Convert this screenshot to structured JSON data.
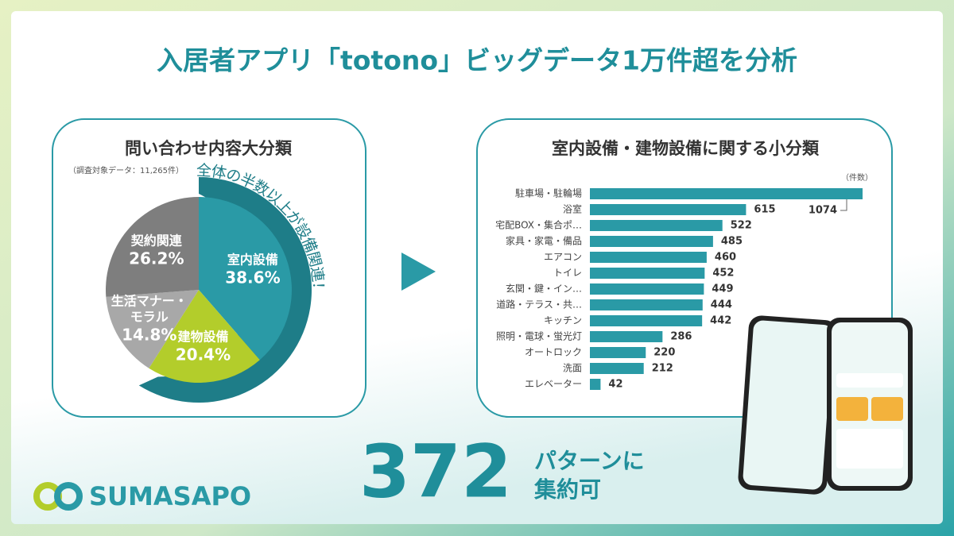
{
  "title": "入居者アプリ「totono」ビッグデータ1万件超を分析",
  "chart_data": [
    {
      "type": "pie",
      "title": "問い合わせ内容大分類",
      "note": "（調査対象データ：11,265件）",
      "annotation": "全体の半数以上が設備関連！",
      "categories": [
        "室内設備",
        "建物設備",
        "生活マナー・モラル",
        "契約関連"
      ],
      "values": [
        38.6,
        20.4,
        14.8,
        26.2
      ],
      "value_labels": [
        "38.6%",
        "20.4%",
        "14.8%",
        "26.2%"
      ],
      "colors": [
        "#2a9aa6",
        "#b3cd2b",
        "#a8a8a8",
        "#7e7e7e"
      ]
    },
    {
      "type": "bar",
      "orientation": "horizontal",
      "title": "室内設備・建物設備に関する小分類",
      "unit": "（件数）",
      "categories": [
        "駐車場・駐輪場",
        "浴室",
        "宅配BOX・集合ポ…",
        "家具・家電・備品",
        "エアコン",
        "トイレ",
        "玄関・鍵・イン…",
        "道路・テラス・共…",
        "キッチン",
        "照明・電球・蛍光灯",
        "オートロック",
        "洗面",
        "エレベーター"
      ],
      "values": [
        1074,
        615,
        522,
        485,
        460,
        452,
        449,
        444,
        442,
        286,
        220,
        212,
        42
      ],
      "color": "#2a9aa6"
    }
  ],
  "summary": {
    "number": 372,
    "line1": "パターンに",
    "line2": "集約可"
  },
  "logo": "SUMASAPO"
}
